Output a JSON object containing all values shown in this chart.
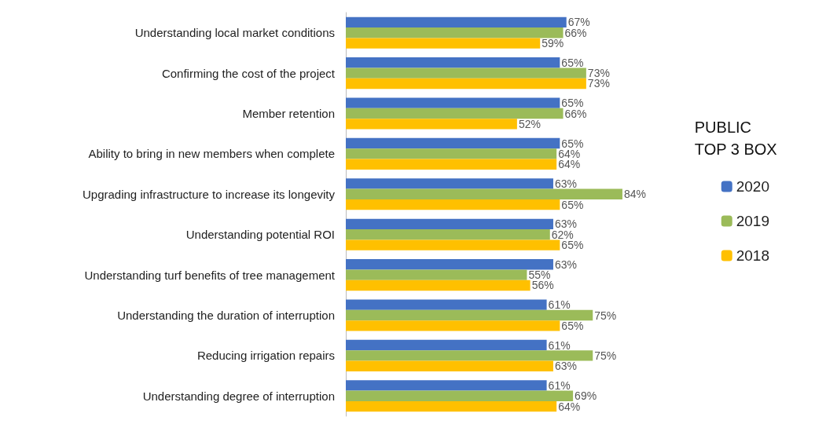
{
  "chart_data": {
    "type": "bar",
    "orientation": "horizontal",
    "tick_labels": "y",
    "legend": "right",
    "legend_title": "PUBLIC TOP 3 BOX",
    "data_labels": true,
    "categories": [
      "Understanding local market conditions",
      "Confirming the cost of the project",
      "Member retention",
      "Ability to bring in new members when complete",
      "Upgrading infrastructure to increase its longevity",
      "Understanding potential ROI",
      "Understanding turf benefits of tree management",
      "Understanding the duration of interruption",
      "Reducing irrigation repairs",
      "Understanding degree of interruption"
    ],
    "series": [
      {
        "name": "2020",
        "color": "#4472c4",
        "values": [
          67,
          65,
          65,
          65,
          63,
          63,
          63,
          61,
          61,
          61
        ],
        "value_labels": [
          "67%",
          "65%",
          "65%",
          "65%",
          "63%",
          "63%",
          "63%",
          "61%",
          "61%",
          "61%"
        ]
      },
      {
        "name": "2019",
        "color": "#9bbb59",
        "values": [
          66,
          73,
          66,
          64,
          84,
          62,
          55,
          75,
          75,
          69
        ],
        "value_labels": [
          "66%",
          "73%",
          "66%",
          "64%",
          "84%",
          "62%",
          "55%",
          "75%",
          "75%",
          "69%"
        ]
      },
      {
        "name": "2018",
        "color": "#ffc000",
        "values": [
          59,
          73,
          52,
          64,
          65,
          65,
          56,
          65,
          63,
          64
        ],
        "value_labels": [
          "59%",
          "73%",
          "52%",
          "64%",
          "65%",
          "65%",
          "56%",
          "65%",
          "63%",
          "64%"
        ]
      }
    ]
  }
}
